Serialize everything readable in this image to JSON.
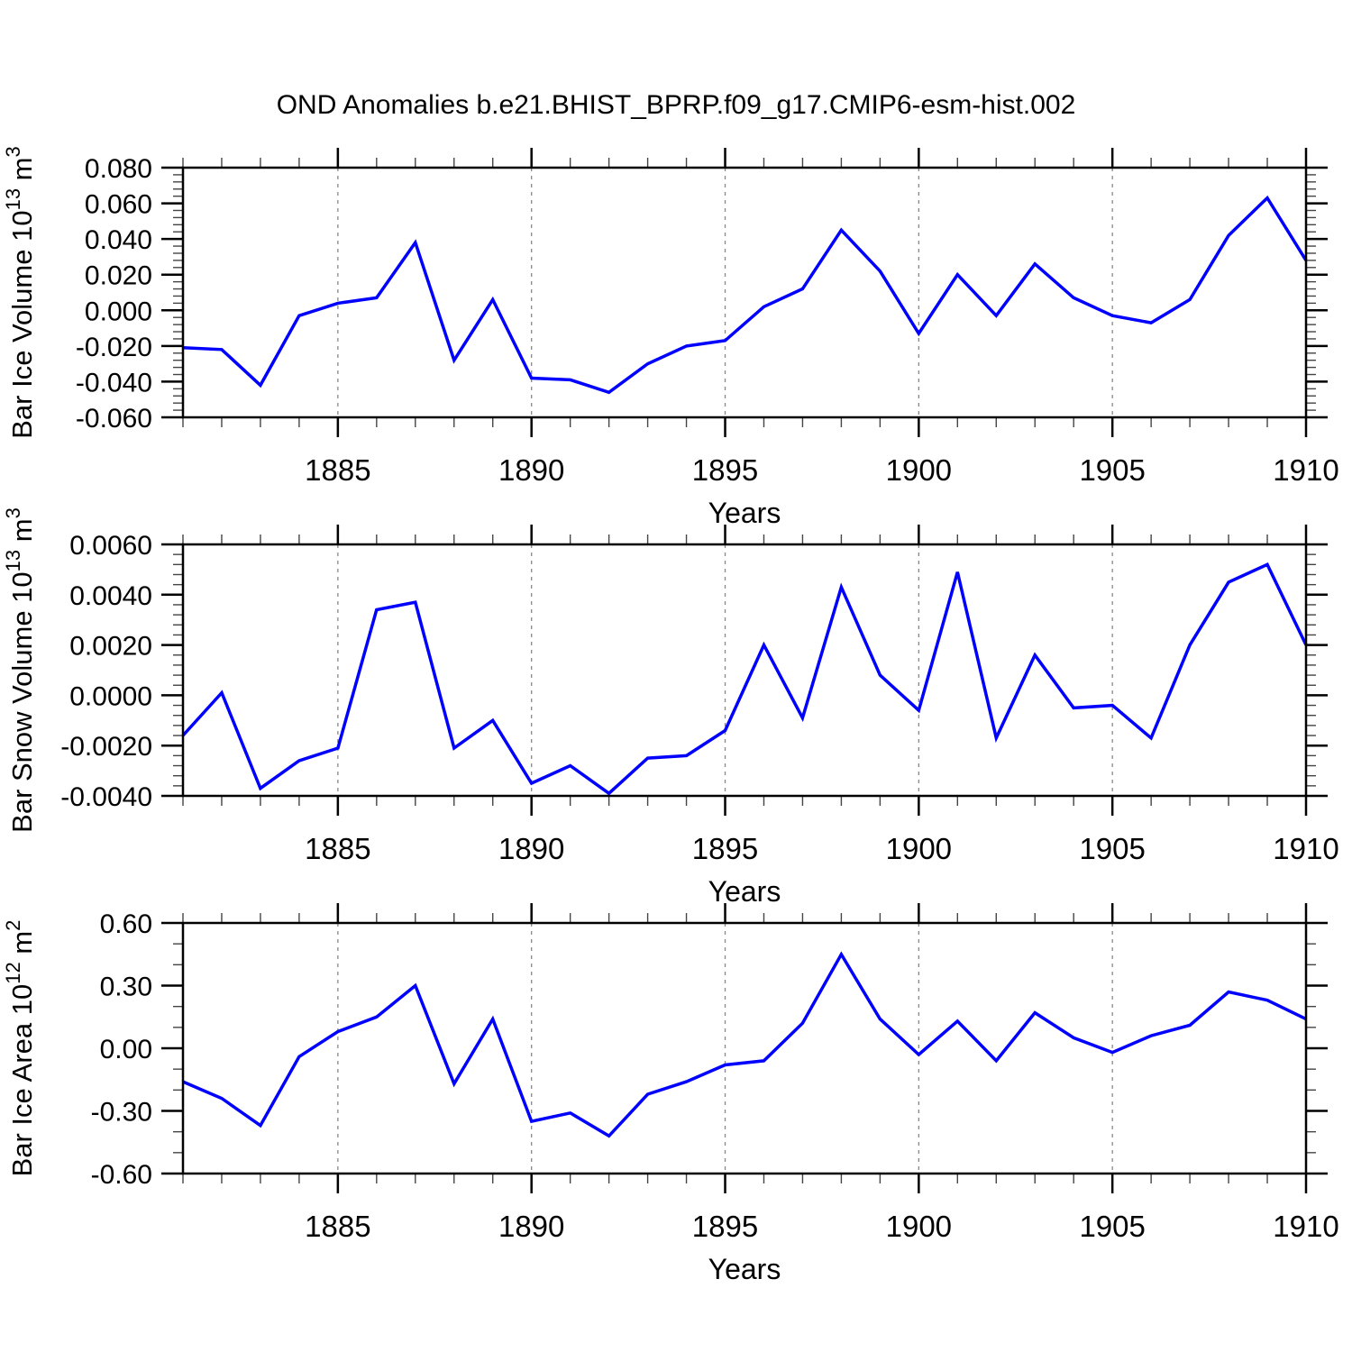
{
  "page": {
    "title": "OND Anomalies b.e21.BHIST_BPRP.f09_g17.CMIP6-esm-hist.002"
  },
  "style": {
    "line_color": "#0000ff",
    "axis_color": "#000000",
    "minor_tick_color": "#444444",
    "grid_color": "#888888",
    "background": "#ffffff"
  },
  "chart_data": [
    {
      "type": "line",
      "id": "bar-ice-volume",
      "title": "OND Anomalies b.e21.BHIST_BPRP.f09_g17.CMIP6-esm-hist.002",
      "xlabel": "Years",
      "ylabel_plain": "Bar Ice Volume 10¹³ m³",
      "ylabel": [
        {
          "text": "Bar Ice Volume 10"
        },
        {
          "text": "13",
          "sup": true
        },
        {
          "text": " m"
        },
        {
          "text": "3",
          "sup": true
        }
      ],
      "x": [
        1881,
        1882,
        1883,
        1884,
        1885,
        1886,
        1887,
        1888,
        1889,
        1890,
        1891,
        1892,
        1893,
        1894,
        1895,
        1896,
        1897,
        1898,
        1899,
        1900,
        1901,
        1902,
        1903,
        1904,
        1905,
        1906,
        1907,
        1908,
        1909,
        1910
      ],
      "values": [
        -0.021,
        -0.022,
        -0.042,
        -0.003,
        0.004,
        0.007,
        0.038,
        -0.028,
        0.006,
        -0.038,
        -0.039,
        -0.046,
        -0.03,
        -0.02,
        -0.017,
        0.002,
        0.012,
        0.045,
        0.022,
        -0.013,
        0.02,
        -0.003,
        0.026,
        0.007,
        -0.003,
        -0.007,
        0.006,
        0.042,
        0.063,
        0.028
      ],
      "ylim": [
        -0.06,
        0.08
      ],
      "ytick_values": [
        0.08,
        0.06,
        0.04,
        0.02,
        0.0,
        -0.02,
        -0.04,
        -0.06
      ],
      "ytick_labels": [
        "0.080",
        "0.060",
        "0.040",
        "0.020",
        "0.000",
        "-0.020",
        "-0.040",
        "-0.060"
      ],
      "yminor_step": 0.004,
      "xlim": [
        1881,
        1910
      ],
      "xticks": [
        1885,
        1890,
        1895,
        1900,
        1905,
        1910
      ],
      "xtick_labels": [
        "1885",
        "1890",
        "1895",
        "1900",
        "1905",
        "1910"
      ],
      "xminor_step": 1,
      "grid_years": [
        1885,
        1890,
        1895,
        1900,
        1905
      ],
      "grid": "vertical-dashed",
      "legend": "none"
    },
    {
      "type": "line",
      "id": "bar-snow-volume",
      "title": "",
      "xlabel": "Years",
      "ylabel_plain": "Bar Snow Volume 10¹³ m³",
      "ylabel": [
        {
          "text": "Bar Snow Volume 10"
        },
        {
          "text": "13",
          "sup": true
        },
        {
          "text": " m"
        },
        {
          "text": "3",
          "sup": true
        }
      ],
      "x": [
        1881,
        1882,
        1883,
        1884,
        1885,
        1886,
        1887,
        1888,
        1889,
        1890,
        1891,
        1892,
        1893,
        1894,
        1895,
        1896,
        1897,
        1898,
        1899,
        1900,
        1901,
        1902,
        1903,
        1904,
        1905,
        1906,
        1907,
        1908,
        1909,
        1910
      ],
      "values": [
        -0.0016,
        0.0001,
        -0.0037,
        -0.0026,
        -0.0021,
        0.0034,
        0.0037,
        -0.0021,
        -0.001,
        -0.0035,
        -0.0028,
        -0.0039,
        -0.0025,
        -0.0024,
        -0.0014,
        0.002,
        -0.0009,
        0.0043,
        0.0008,
        -0.0006,
        0.0049,
        -0.0017,
        0.0016,
        -0.0005,
        -0.0004,
        -0.0017,
        0.002,
        0.0045,
        0.0052,
        0.002
      ],
      "ylim": [
        -0.004,
        0.006
      ],
      "ytick_values": [
        0.006,
        0.004,
        0.002,
        0.0,
        -0.002,
        -0.004
      ],
      "ytick_labels": [
        "0.0060",
        "0.0040",
        "0.0020",
        "0.0000",
        "-0.0020",
        "-0.0040"
      ],
      "yminor_step": 0.0004,
      "xlim": [
        1881,
        1910
      ],
      "xticks": [
        1885,
        1890,
        1895,
        1900,
        1905,
        1910
      ],
      "xtick_labels": [
        "1885",
        "1890",
        "1895",
        "1900",
        "1905",
        "1910"
      ],
      "xminor_step": 1,
      "grid_years": [
        1885,
        1890,
        1895,
        1900,
        1905
      ],
      "grid": "vertical-dashed",
      "legend": "none"
    },
    {
      "type": "line",
      "id": "bar-ice-area",
      "title": "",
      "xlabel": "Years",
      "ylabel_plain": "Bar Ice Area 10¹² m²",
      "ylabel": [
        {
          "text": "Bar Ice Area 10"
        },
        {
          "text": "12",
          "sup": true
        },
        {
          "text": " m"
        },
        {
          "text": "2",
          "sup": true
        }
      ],
      "x": [
        1881,
        1882,
        1883,
        1884,
        1885,
        1886,
        1887,
        1888,
        1889,
        1890,
        1891,
        1892,
        1893,
        1894,
        1895,
        1896,
        1897,
        1898,
        1899,
        1900,
        1901,
        1902,
        1903,
        1904,
        1905,
        1906,
        1907,
        1908,
        1909,
        1910
      ],
      "values": [
        -0.16,
        -0.24,
        -0.37,
        -0.04,
        0.08,
        0.15,
        0.3,
        -0.17,
        0.14,
        -0.35,
        -0.31,
        -0.42,
        -0.22,
        -0.16,
        -0.08,
        -0.06,
        0.12,
        0.45,
        0.14,
        -0.03,
        0.13,
        -0.06,
        0.17,
        0.05,
        -0.02,
        0.06,
        0.11,
        0.27,
        0.23,
        0.14
      ],
      "ylim": [
        -0.6,
        0.6
      ],
      "ytick_values": [
        0.6,
        0.3,
        0.0,
        -0.3,
        -0.6
      ],
      "ytick_labels": [
        "0.60",
        "0.30",
        "0.00",
        "-0.30",
        "-0.60"
      ],
      "yminor_step": 0.1,
      "xlim": [
        1881,
        1910
      ],
      "xticks": [
        1885,
        1890,
        1895,
        1900,
        1905,
        1910
      ],
      "xtick_labels": [
        "1885",
        "1890",
        "1895",
        "1900",
        "1905",
        "1910"
      ],
      "xminor_step": 1,
      "grid_years": [
        1885,
        1890,
        1895,
        1900,
        1905
      ],
      "grid": "vertical-dashed",
      "legend": "none"
    }
  ]
}
